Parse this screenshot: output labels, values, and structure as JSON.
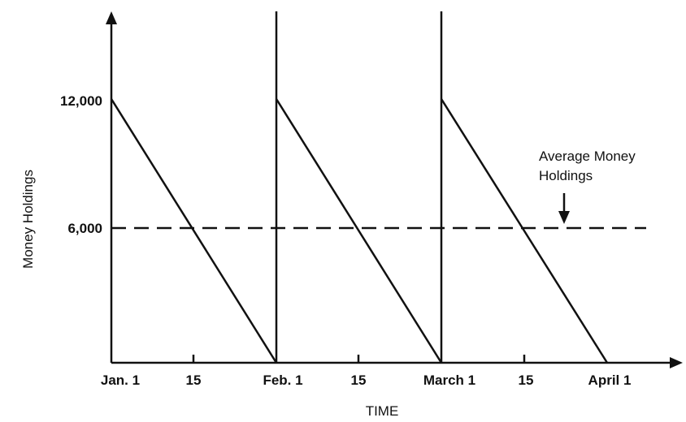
{
  "chart_data": {
    "type": "line",
    "title": "",
    "xlabel": "TIME",
    "ylabel": "Money Holdings",
    "x_ticks": [
      "Jan. 1",
      "15",
      "Feb. 1",
      "15",
      "March 1",
      "15",
      "April 1"
    ],
    "y_ticks": [
      "6,000",
      "12,000"
    ],
    "ylim": [
      0,
      12000
    ],
    "series": [
      {
        "points": [
          {
            "x": "Jan. 1",
            "y": 12000
          },
          {
            "x": "Feb. 1",
            "y": 0
          },
          {
            "x": "Feb. 1",
            "y": 12000
          },
          {
            "x": "March 1",
            "y": 0
          },
          {
            "x": "March 1",
            "y": 12000
          },
          {
            "x": "April 1",
            "y": 0
          }
        ]
      }
    ],
    "reference_line": {
      "y": 6000,
      "style": "dashed"
    },
    "annotation": {
      "lines": [
        "Average Money",
        "Holdings"
      ],
      "points_to": {
        "y": 6000
      }
    },
    "grid": false
  }
}
